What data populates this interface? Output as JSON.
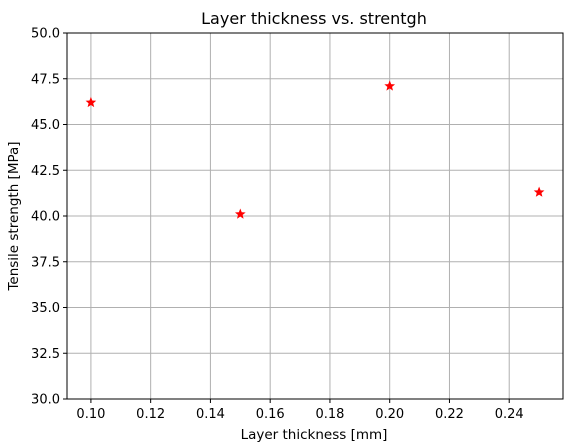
{
  "chart_data": {
    "type": "scatter",
    "title": "Layer thickness vs. strentgh",
    "xlabel": "Layer thickness [mm]",
    "ylabel": "Tensile strength [MPa]",
    "xlim": [
      0.092,
      0.258
    ],
    "ylim": [
      30.0,
      50.0
    ],
    "xticks": [
      0.1,
      0.12,
      0.14,
      0.16,
      0.18,
      0.2,
      0.22,
      0.24
    ],
    "xtick_labels": [
      "0.10",
      "0.12",
      "0.14",
      "0.16",
      "0.18",
      "0.20",
      "0.22",
      "0.24"
    ],
    "yticks": [
      30.0,
      32.5,
      35.0,
      37.5,
      40.0,
      42.5,
      45.0,
      47.5,
      50.0
    ],
    "ytick_labels": [
      "30.0",
      "32.5",
      "35.0",
      "37.5",
      "40.0",
      "42.5",
      "45.0",
      "47.5",
      "50.0"
    ],
    "grid": true,
    "marker": "star",
    "marker_color": "#ff0000",
    "points": [
      {
        "x": 0.1,
        "y": 46.2
      },
      {
        "x": 0.15,
        "y": 40.1
      },
      {
        "x": 0.2,
        "y": 47.1
      },
      {
        "x": 0.25,
        "y": 41.3
      }
    ]
  }
}
